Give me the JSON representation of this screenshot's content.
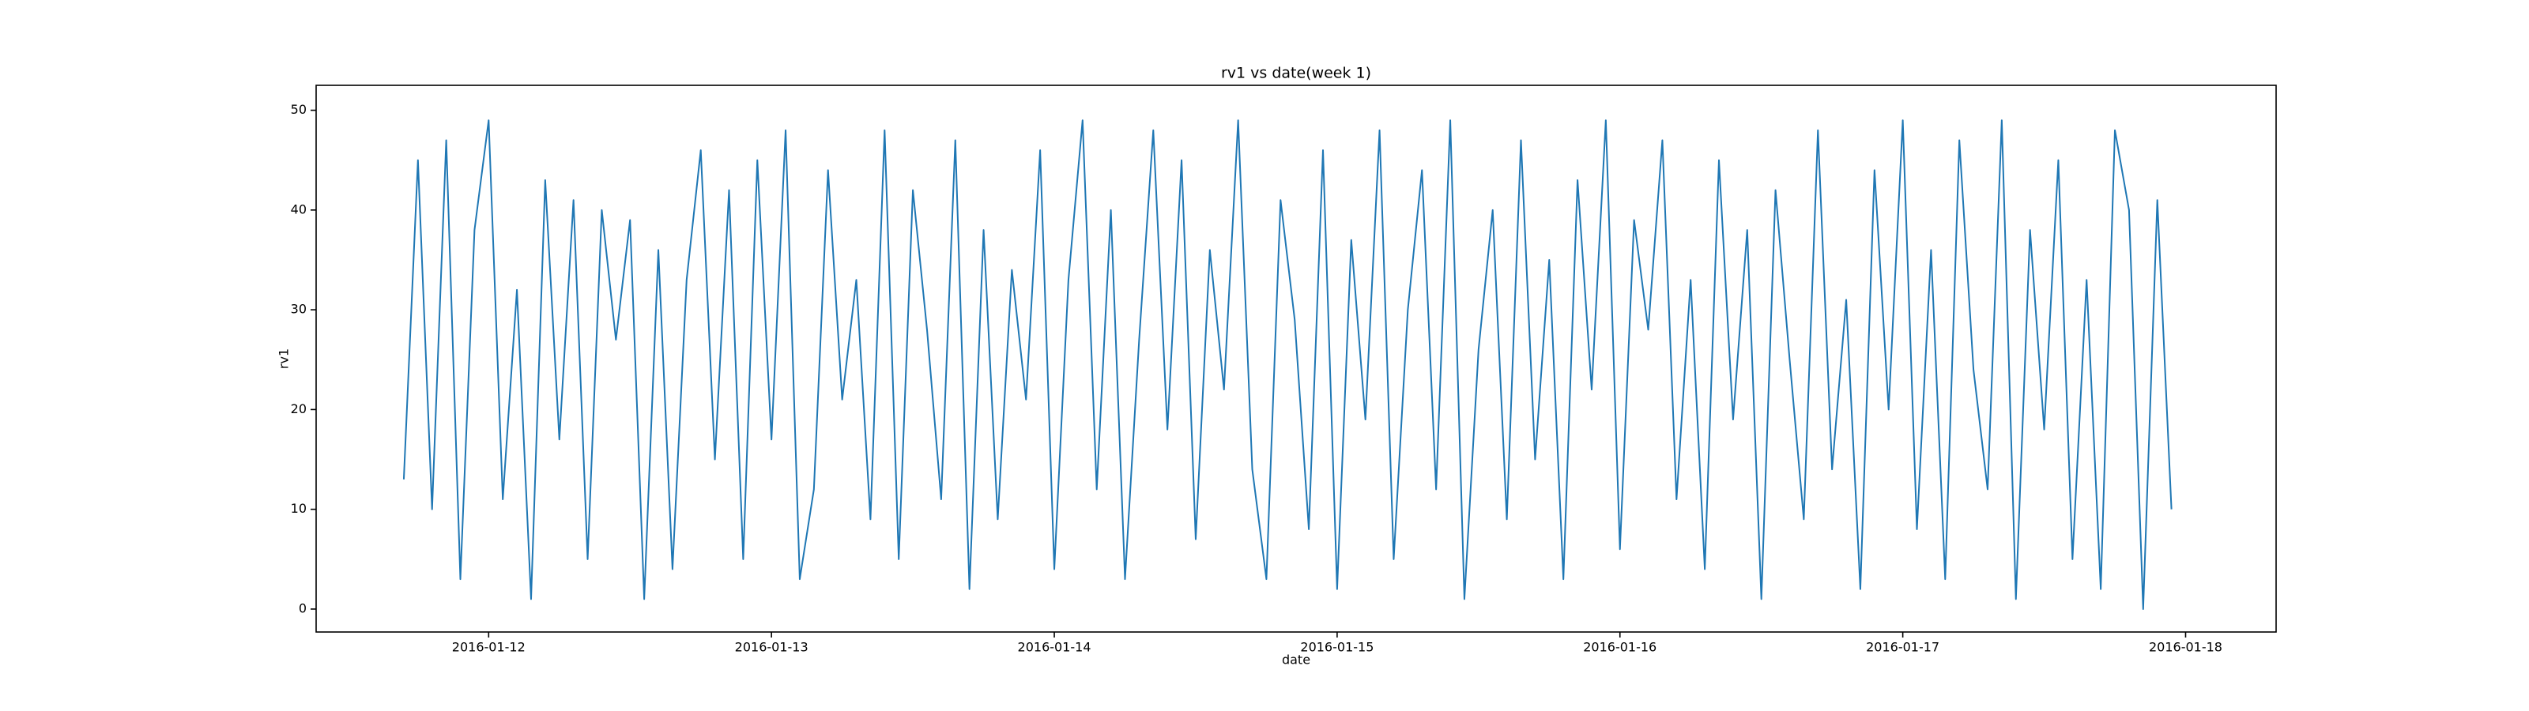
{
  "chart_data": {
    "type": "line",
    "title": "rv1 vs date(week 1)",
    "x_label": "date",
    "y_label": "rv1",
    "x": [
      11.7,
      11.75,
      11.8,
      11.85,
      11.9,
      11.95,
      12,
      12.05,
      12.1,
      12.15,
      12.2,
      12.25,
      12.3,
      12.35,
      12.4,
      12.45,
      12.5,
      12.55,
      12.6,
      12.65,
      12.7,
      12.75,
      12.8,
      12.85,
      12.9,
      12.95,
      13,
      13.05,
      13.1,
      13.15,
      13.2,
      13.25,
      13.3,
      13.35,
      13.4,
      13.45,
      13.5,
      13.55,
      13.6,
      13.65,
      13.7,
      13.75,
      13.8,
      13.85,
      13.9,
      13.95,
      14,
      14.05,
      14.1,
      14.15,
      14.2,
      14.25,
      14.3,
      14.35,
      14.4,
      14.45,
      14.5,
      14.55,
      14.6,
      14.65,
      14.7,
      14.75,
      14.8,
      14.85,
      14.9,
      14.95,
      15,
      15.05,
      15.1,
      15.15,
      15.2,
      15.25,
      15.3,
      15.35,
      15.4,
      15.45,
      15.5,
      15.55,
      15.6,
      15.65,
      15.7,
      15.75,
      15.8,
      15.85,
      15.9,
      15.95,
      16,
      16.05,
      16.1,
      16.15,
      16.2,
      16.25,
      16.3,
      16.35,
      16.4,
      16.45,
      16.5,
      16.55,
      16.6,
      16.65,
      16.7,
      16.75,
      16.8,
      16.85,
      16.9,
      16.95,
      17,
      17.05,
      17.1,
      17.15,
      17.2,
      17.25,
      17.3,
      17.35,
      17.4,
      17.45,
      17.5,
      17.55,
      17.6,
      17.65,
      17.7,
      17.75,
      17.8,
      17.85,
      17.9,
      17.95
    ],
    "series": [
      {
        "name": "rv1",
        "color": "#1f77b4",
        "values": [
          13,
          45,
          10,
          47,
          3,
          38,
          49,
          11,
          32,
          1,
          43,
          17,
          41,
          5,
          40,
          27,
          39,
          1,
          36,
          4,
          33,
          46,
          15,
          42,
          5,
          45,
          17,
          48,
          3,
          12,
          44,
          21,
          33,
          9,
          48,
          5,
          42,
          28,
          11,
          47,
          2,
          38,
          9,
          34,
          21,
          46,
          4,
          33,
          49,
          12,
          40,
          3,
          27,
          48,
          18,
          45,
          7,
          36,
          22,
          49,
          14,
          3,
          41,
          29,
          8,
          46,
          2,
          37,
          19,
          48,
          5,
          30,
          44,
          12,
          49,
          1,
          26,
          40,
          9,
          47,
          15,
          35,
          3,
          43,
          22,
          49,
          6,
          39,
          28,
          47,
          11,
          33,
          4,
          45,
          19,
          38,
          1,
          42,
          25,
          9,
          48,
          14,
          31,
          2,
          44,
          20,
          49,
          8,
          36,
          3,
          47,
          24,
          12,
          49,
          1,
          38,
          18,
          45,
          5,
          33,
          2,
          48,
          40,
          0,
          41,
          10
        ]
      }
    ],
    "xlim": [
      11.39,
      18.32
    ],
    "ylim": [
      -2.3,
      52.5
    ],
    "xticks": [
      {
        "value": 12,
        "label": "2016-01-12"
      },
      {
        "value": 13,
        "label": "2016-01-13"
      },
      {
        "value": 14,
        "label": "2016-01-14"
      },
      {
        "value": 15,
        "label": "2016-01-15"
      },
      {
        "value": 16,
        "label": "2016-01-16"
      },
      {
        "value": 17,
        "label": "2016-01-17"
      },
      {
        "value": 18,
        "label": "2016-01-18"
      }
    ],
    "yticks": [
      0,
      10,
      20,
      30,
      40,
      50
    ],
    "grid": false
  }
}
